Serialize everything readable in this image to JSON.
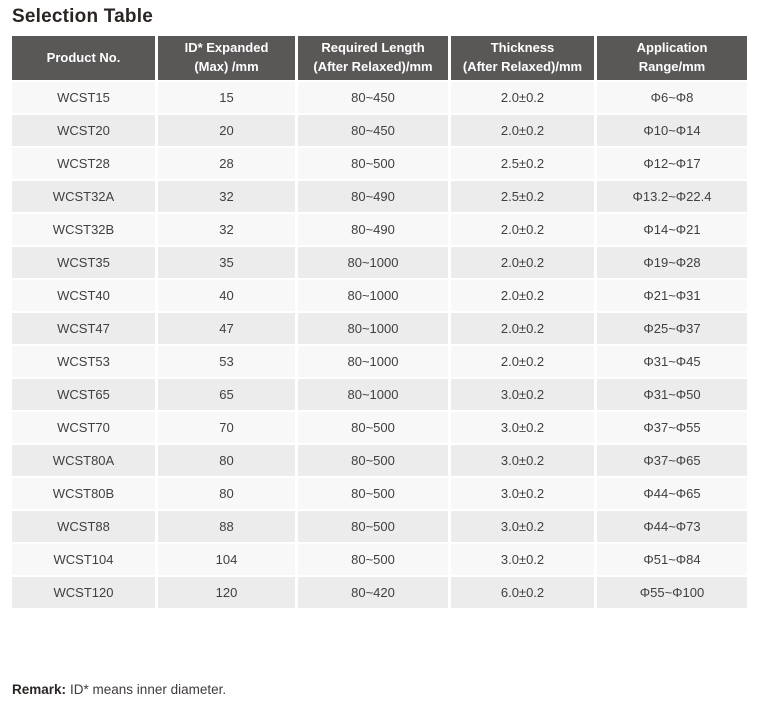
{
  "title": "Selection Table",
  "colors": {
    "header_bg": "#5a5757",
    "header_text": "#ffffff",
    "row_odd_bg": "#f8f8f8",
    "row_even_bg": "#ececec",
    "body_text": "#404040",
    "title_text": "#2a2523"
  },
  "table": {
    "headers": [
      "Product No.",
      "ID* Expanded\n(Max) /mm",
      "Required Length\n(After Relaxed)/mm",
      "Thickness\n(After Relaxed)/mm",
      "Application\nRange/mm"
    ],
    "rows": [
      [
        "WCST15",
        "15",
        "80~450",
        "2.0±0.2",
        "Φ6~Φ8"
      ],
      [
        "WCST20",
        "20",
        "80~450",
        "2.0±0.2",
        "Φ10~Φ14"
      ],
      [
        "WCST28",
        "28",
        "80~500",
        "2.5±0.2",
        "Φ12~Φ17"
      ],
      [
        "WCST32A",
        "32",
        "80~490",
        "2.5±0.2",
        "Φ13.2~Φ22.4"
      ],
      [
        "WCST32B",
        "32",
        "80~490",
        "2.0±0.2",
        "Φ14~Φ21"
      ],
      [
        "WCST35",
        "35",
        "80~1000",
        "2.0±0.2",
        "Φ19~Φ28"
      ],
      [
        "WCST40",
        "40",
        "80~1000",
        "2.0±0.2",
        "Φ21~Φ31"
      ],
      [
        "WCST47",
        "47",
        "80~1000",
        "2.0±0.2",
        "Φ25~Φ37"
      ],
      [
        "WCST53",
        "53",
        "80~1000",
        "2.0±0.2",
        "Φ31~Φ45"
      ],
      [
        "WCST65",
        "65",
        "80~1000",
        "3.0±0.2",
        "Φ31~Φ50"
      ],
      [
        "WCST70",
        "70",
        "80~500",
        "3.0±0.2",
        "Φ37~Φ55"
      ],
      [
        "WCST80A",
        "80",
        "80~500",
        "3.0±0.2",
        "Φ37~Φ65"
      ],
      [
        "WCST80B",
        "80",
        "80~500",
        "3.0±0.2",
        "Φ44~Φ65"
      ],
      [
        "WCST88",
        "88",
        "80~500",
        "3.0±0.2",
        "Φ44~Φ73"
      ],
      [
        "WCST104",
        "104",
        "80~500",
        "3.0±0.2",
        "Φ51~Φ84"
      ],
      [
        "WCST120",
        "120",
        "80~420",
        "6.0±0.2",
        "Φ55~Φ100"
      ]
    ]
  },
  "remark": {
    "label": "Remark:",
    "text": "ID* means inner diameter."
  }
}
